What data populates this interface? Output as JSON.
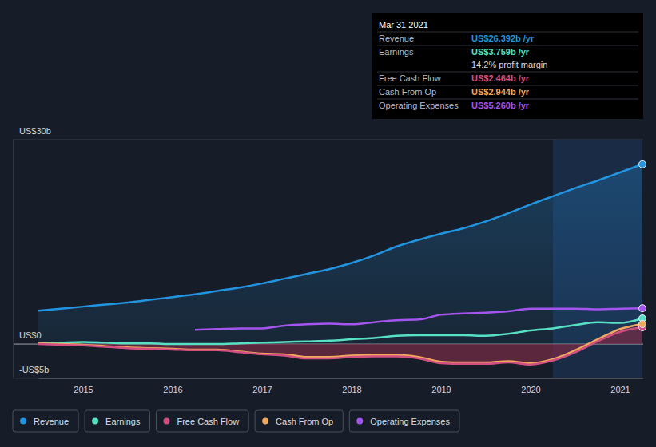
{
  "chart_data": {
    "type": "line",
    "grid": true,
    "legend": "bottom",
    "x": [
      2014.5,
      2014.75,
      2015,
      2015.25,
      2015.5,
      2015.75,
      2016,
      2016.25,
      2016.5,
      2016.75,
      2017,
      2017.25,
      2017.5,
      2017.75,
      2018,
      2018.25,
      2018.5,
      2018.75,
      2019,
      2019.25,
      2019.5,
      2019.75,
      2020,
      2020.25,
      2020.5,
      2020.75,
      2021,
      2021.25
    ],
    "xlim": [
      2014.5,
      2021.25
    ],
    "xticks": [
      2015,
      2016,
      2017,
      2018,
      2019,
      2020,
      2021
    ],
    "ylim": [
      -5,
      30
    ],
    "yticks": [
      {
        "value": 30,
        "label": "US$30b"
      },
      {
        "value": 0,
        "label": "US$0"
      },
      {
        "value": -5,
        "label": "-US$5b"
      }
    ],
    "series": [
      {
        "name": "Revenue",
        "color": "#2394df",
        "values": [
          4.9,
          5.2,
          5.5,
          5.8,
          6.1,
          6.5,
          6.9,
          7.3,
          7.8,
          8.3,
          8.9,
          9.6,
          10.3,
          11.0,
          11.9,
          13.0,
          14.3,
          15.3,
          16.2,
          17.0,
          18.0,
          19.2,
          20.5,
          21.7,
          22.9,
          24.0,
          25.2,
          26.392
        ]
      },
      {
        "name": "Earnings",
        "color": "#58e0c5",
        "values": [
          0.1,
          0.2,
          0.3,
          0.2,
          0.1,
          0.1,
          0.0,
          0.0,
          0.0,
          0.1,
          0.2,
          0.3,
          0.4,
          0.5,
          0.7,
          0.9,
          1.2,
          1.3,
          1.3,
          1.3,
          1.2,
          1.5,
          2.0,
          2.3,
          2.8,
          3.2,
          3.1,
          3.759
        ]
      },
      {
        "name": "Free Cash Flow",
        "color": "#d24f82",
        "values": [
          0.0,
          -0.1,
          -0.2,
          -0.4,
          -0.6,
          -0.7,
          -0.8,
          -0.9,
          -0.9,
          -1.2,
          -1.5,
          -1.7,
          -2.1,
          -2.1,
          -1.9,
          -1.8,
          -1.8,
          -2.1,
          -2.8,
          -2.9,
          -2.9,
          -2.7,
          -3.0,
          -2.4,
          -1.2,
          0.4,
          1.8,
          2.464
        ]
      },
      {
        "name": "Cash From Op",
        "color": "#f0a860",
        "values": [
          0.1,
          0.0,
          -0.1,
          -0.3,
          -0.5,
          -0.6,
          -0.7,
          -0.8,
          -0.8,
          -1.1,
          -1.4,
          -1.5,
          -1.9,
          -1.9,
          -1.7,
          -1.6,
          -1.6,
          -1.9,
          -2.6,
          -2.7,
          -2.7,
          -2.5,
          -2.8,
          -2.2,
          -0.9,
          0.7,
          2.2,
          2.944
        ]
      },
      {
        "name": "Operating Expenses",
        "color": "#a455ed",
        "values": [
          null,
          null,
          null,
          null,
          null,
          null,
          null,
          2.1,
          2.2,
          2.3,
          2.3,
          2.7,
          2.9,
          3.0,
          2.9,
          3.2,
          3.5,
          3.6,
          4.3,
          4.5,
          4.6,
          4.8,
          5.2,
          5.2,
          5.2,
          5.1,
          5.2,
          5.26
        ]
      }
    ],
    "tooltip": {
      "title": "Mar 31 2021",
      "rows": [
        {
          "label": "Revenue",
          "value": "US$26.392b /yr"
        },
        {
          "label": "Earnings",
          "value": "US$3.759b /yr"
        },
        {
          "label": "Free Cash Flow",
          "value": "US$2.464b /yr"
        },
        {
          "label": "Cash From Op",
          "value": "US$2.944b /yr"
        },
        {
          "label": "Operating Expenses",
          "value": "US$5.260b /yr"
        }
      ],
      "note": "14.2% profit margin"
    }
  }
}
